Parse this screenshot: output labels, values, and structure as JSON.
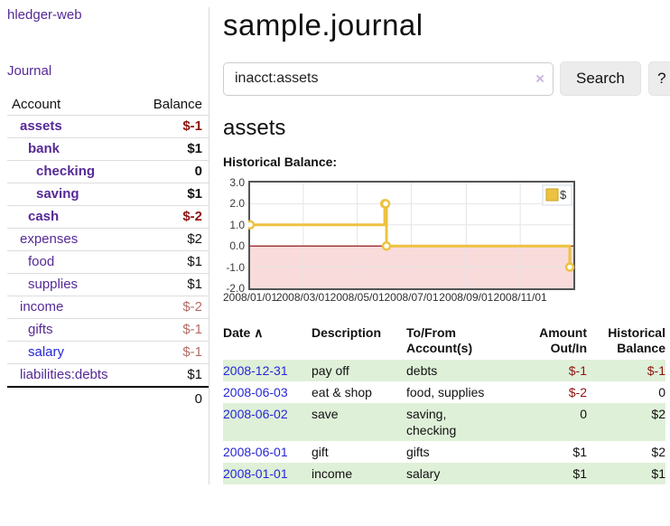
{
  "app": {
    "title": "hledger-web",
    "nav_journal": "Journal"
  },
  "colors": {
    "visited_link": "#552a97",
    "unvisited_link": "#2626d8",
    "negative_strong": "#8d1310",
    "negative_soft": "#b56b66",
    "row_highlight": "#dff0d8",
    "button_bg": "#ececec",
    "clear_icon": "#c9b6df"
  },
  "sidebar": {
    "accounts_header": {
      "account": "Account",
      "balance": "Balance"
    },
    "accounts": [
      {
        "name": "assets",
        "depth": 0,
        "bold": true,
        "balance": "$-1",
        "negative": "strong",
        "link_style": "visited"
      },
      {
        "name": "bank",
        "depth": 1,
        "bold": true,
        "balance": "$1",
        "negative": "none",
        "link_style": "visited"
      },
      {
        "name": "checking",
        "depth": 2,
        "bold": true,
        "balance": "0",
        "negative": "none",
        "link_style": "visited"
      },
      {
        "name": "saving",
        "depth": 2,
        "bold": true,
        "balance": "$1",
        "negative": "none",
        "link_style": "visited"
      },
      {
        "name": "cash",
        "depth": 1,
        "bold": true,
        "balance": "$-2",
        "negative": "strong",
        "link_style": "visited"
      },
      {
        "name": "expenses",
        "depth": 0,
        "bold": false,
        "balance": "$2",
        "negative": "none",
        "link_style": "visited"
      },
      {
        "name": "food",
        "depth": 1,
        "bold": false,
        "balance": "$1",
        "negative": "none",
        "link_style": "visited"
      },
      {
        "name": "supplies",
        "depth": 1,
        "bold": false,
        "balance": "$1",
        "negative": "none",
        "link_style": "visited"
      },
      {
        "name": "income",
        "depth": 0,
        "bold": false,
        "balance": "$-2",
        "negative": "soft",
        "link_style": "visited"
      },
      {
        "name": "gifts",
        "depth": 1,
        "bold": false,
        "balance": "$-1",
        "negative": "soft",
        "link_style": "visited"
      },
      {
        "name": "salary",
        "depth": 1,
        "bold": false,
        "balance": "$-1",
        "negative": "soft",
        "link_style": "unvisited"
      },
      {
        "name": "liabilities:debts",
        "depth": 0,
        "bold": false,
        "balance": "$1",
        "negative": "none",
        "link_style": "visited"
      }
    ],
    "total": "0"
  },
  "header": {
    "title": "sample.journal"
  },
  "search": {
    "query": "inacct:assets",
    "clear_icon": "×",
    "button_label": "Search",
    "help_label": "?"
  },
  "account_page": {
    "heading": "assets",
    "chart_label": "Historical Balance:"
  },
  "chart_data": {
    "type": "line",
    "step": true,
    "title": "Historical Balance",
    "series": [
      {
        "name": "$",
        "points": [
          [
            "2008-01-01",
            1
          ],
          [
            "2008-06-01",
            2
          ],
          [
            "2008-06-02",
            2
          ],
          [
            "2008-06-03",
            0
          ],
          [
            "2008-12-31",
            -1
          ]
        ]
      }
    ],
    "x_ticks": [
      "2008/01/01",
      "2008/03/01",
      "2008/05/01",
      "2008/07/01",
      "2008/09/01",
      "2008/11/01"
    ],
    "y_ticks": [
      3.0,
      2.0,
      1.0,
      0.0,
      -1.0,
      -2.0
    ],
    "xlim": [
      "2008-01-01",
      "2008-12-31"
    ],
    "ylim": [
      -2,
      3
    ],
    "grid": true,
    "legend_position": "top-right",
    "colors": {
      "line": "#edc240",
      "marker_fill": "#ffffff",
      "zero_line": "#8b0000",
      "negative_region": "#f9dbdb",
      "grid": "#e5e5e5",
      "border": "#545454",
      "legend_border": "#cfdbe6",
      "legend_swatch_border": "#c7a21f"
    }
  },
  "register": {
    "columns": [
      "Date",
      "Description",
      "To/From Account(s)",
      "Amount Out/In",
      "Historical Balance"
    ],
    "date_sort_indicator": "∧",
    "rows": [
      {
        "date": "2008-12-31",
        "description": "pay off",
        "accounts": "debts",
        "amount": "$-1",
        "amount_negative": true,
        "balance": "$-1",
        "balance_negative": true,
        "highlight": true
      },
      {
        "date": "2008-06-03",
        "description": "eat & shop",
        "accounts": "food, supplies",
        "amount": "$-2",
        "amount_negative": true,
        "balance": "0",
        "balance_negative": false,
        "highlight": false
      },
      {
        "date": "2008-06-02",
        "description": "save",
        "accounts": "saving, checking",
        "amount": "0",
        "amount_negative": false,
        "balance": "$2",
        "balance_negative": false,
        "highlight": true
      },
      {
        "date": "2008-06-01",
        "description": "gift",
        "accounts": "gifts",
        "amount": "$1",
        "amount_negative": false,
        "balance": "$2",
        "balance_negative": false,
        "highlight": false
      },
      {
        "date": "2008-01-01",
        "description": "income",
        "accounts": "salary",
        "amount": "$1",
        "amount_negative": false,
        "balance": "$1",
        "balance_negative": false,
        "highlight": true
      }
    ]
  }
}
